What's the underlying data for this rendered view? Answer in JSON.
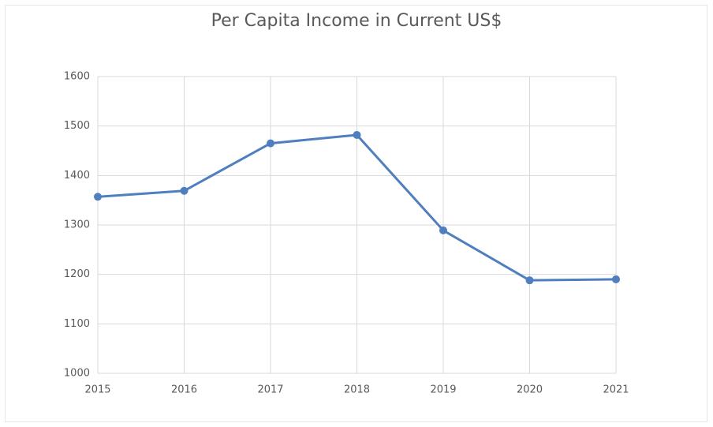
{
  "chart_data": {
    "type": "line",
    "title": "Per Capita Income in Current US$",
    "categories": [
      "2015",
      "2016",
      "2017",
      "2018",
      "2019",
      "2020",
      "2021"
    ],
    "values": [
      1357,
      1369,
      1465,
      1482,
      1289,
      1188,
      1190
    ],
    "color": "#4f7fbf",
    "ylim": [
      1000,
      1600
    ],
    "yticks": [
      1000,
      1100,
      1200,
      1300,
      1400,
      1500,
      1600
    ],
    "grid": true
  }
}
